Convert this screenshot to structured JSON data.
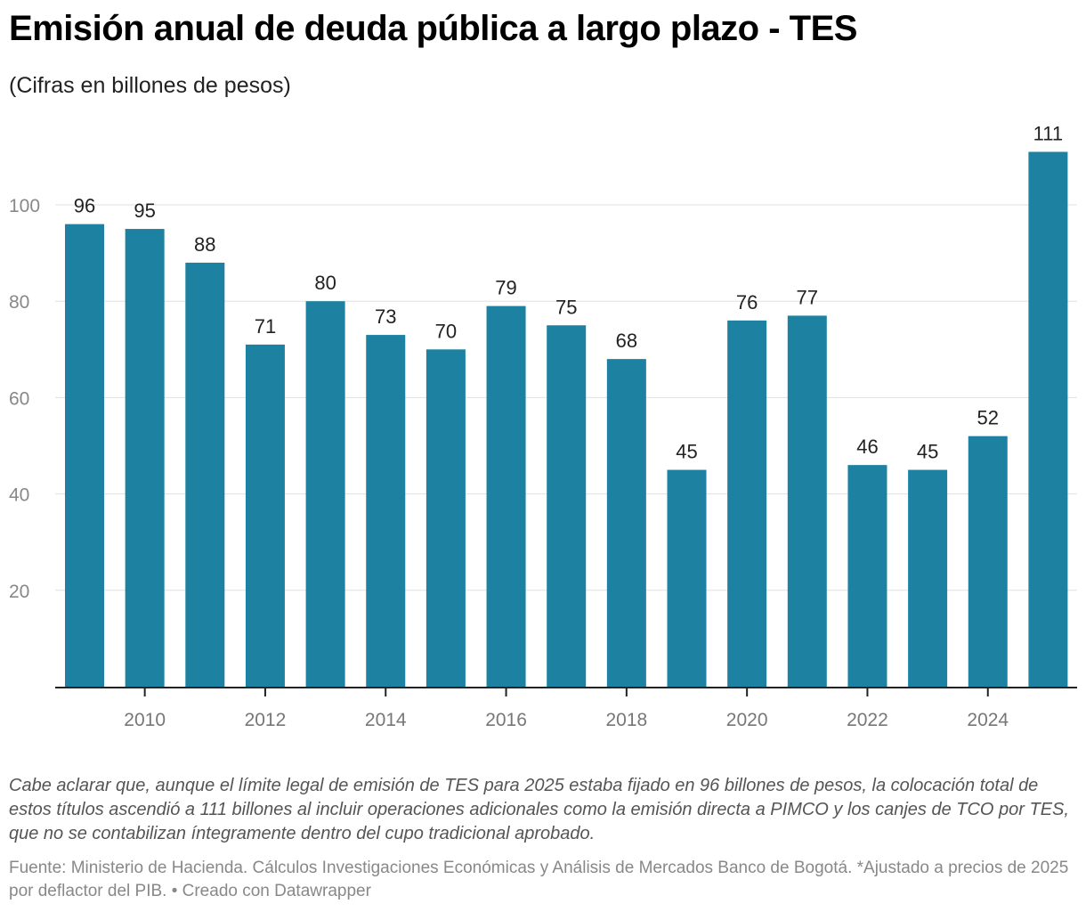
{
  "title": "Emisión anual de deuda pública a largo plazo - TES",
  "subtitle": "(Cifras en billones de pesos)",
  "note": "Cabe aclarar que, aunque el límite legal de emisión de TES para 2025 estaba fijado en 96 billones de pesos, la colocación total de estos títulos ascendió a 111 billones al incluir operaciones adicionales como la emisión directa a PIMCO y los canjes de TCO por TES, que no se contabilizan íntegramente dentro del cupo tradicional aprobado.",
  "source": "Fuente: Ministerio de Hacienda. Cálculos Investigaciones Económicas y Análisis de Mercados Banco de Bogotá. *Ajustado a precios de 2025 por deflactor del PIB. • Creado con Datawrapper",
  "chart_data": {
    "type": "bar",
    "categories": [
      "2009",
      "2010",
      "2011",
      "2012",
      "2013",
      "2014",
      "2015",
      "2016",
      "2017",
      "2018",
      "2019",
      "2020",
      "2021",
      "2022",
      "2023",
      "2024",
      "2025"
    ],
    "values": [
      96,
      95,
      88,
      71,
      80,
      73,
      70,
      79,
      75,
      68,
      45,
      76,
      77,
      46,
      45,
      52,
      111
    ],
    "xticks": [
      "2010",
      "2012",
      "2014",
      "2016",
      "2018",
      "2020",
      "2022",
      "2024"
    ],
    "yticks": [
      20,
      40,
      60,
      80,
      100
    ],
    "ylim": [
      0,
      111
    ],
    "grid": true,
    "bar_color": "#1d82a2",
    "data_labels": true
  }
}
